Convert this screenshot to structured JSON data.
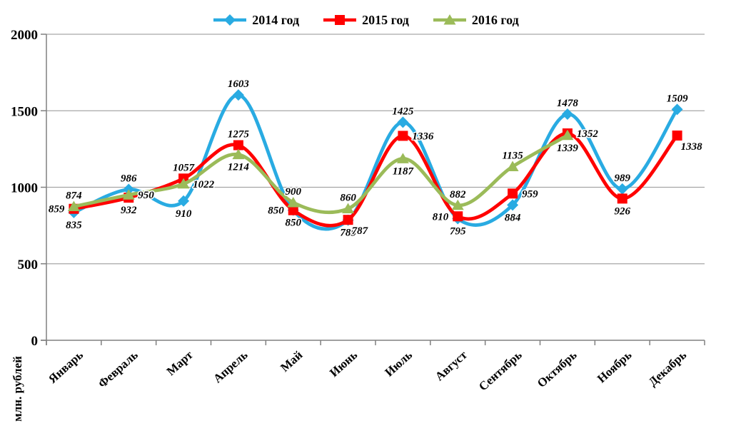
{
  "chart_data": {
    "type": "line",
    "smooth": true,
    "categories": [
      "Январь",
      "Февраль",
      "Март",
      "Апрель",
      "Май",
      "Июнь",
      "Июль",
      "Август",
      "Сентябрь",
      "Октябрь",
      "Ноябрь",
      "Декабрь"
    ],
    "series": [
      {
        "name": "2014 год",
        "color": "#29ABE2",
        "marker": "diamond",
        "values": [
          835,
          986,
          910,
          1603,
          850,
          785,
          1425,
          795,
          884,
          1478,
          989,
          1509
        ],
        "label_pos": [
          "below",
          "above",
          "below",
          "above",
          "below",
          "below",
          "above",
          "below",
          "below",
          "above",
          "above",
          "above"
        ]
      },
      {
        "name": "2015 год",
        "color": "#FF0000",
        "marker": "square",
        "values": [
          859,
          932,
          1057,
          1275,
          850,
          787,
          1336,
          810,
          959,
          1352,
          926,
          1338
        ],
        "label_pos": [
          "left",
          "below",
          "above",
          "above",
          "left",
          "below-right",
          "right",
          "left",
          "right",
          "right",
          "below",
          "below-right"
        ]
      },
      {
        "name": "2016 год",
        "color": "#9BBB59",
        "marker": "triangle",
        "values": [
          874,
          950,
          1022,
          1214,
          900,
          860,
          1187,
          882,
          1135,
          1339
        ],
        "label_pos": [
          "above",
          "right",
          "right",
          "below",
          "above",
          "above",
          "below",
          "above",
          "above",
          "below"
        ]
      }
    ],
    "title": "",
    "xlabel": "",
    "ylabel": "млн. рублей",
    "ylim": [
      0,
      2000
    ],
    "ytick_step": 500,
    "grid": true,
    "legend_position": "top",
    "axis_color": "#808080",
    "grid_color": "#A6A6A6",
    "label_color": "#000000"
  }
}
